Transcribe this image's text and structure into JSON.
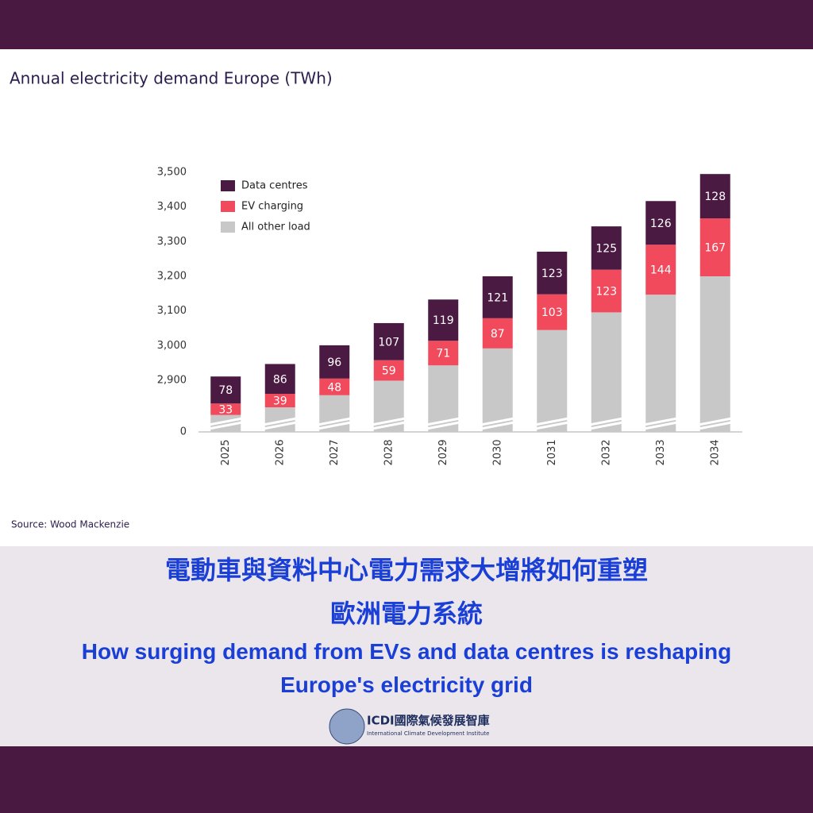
{
  "chart_data": {
    "type": "bar",
    "stacked": true,
    "title": "Annual electricity demand Europe (TWh)",
    "source": "Source: Wood Mackenzie",
    "categories": [
      "2025",
      "2026",
      "2027",
      "2028",
      "2029",
      "2030",
      "2031",
      "2032",
      "2033",
      "2034"
    ],
    "series": [
      {
        "name": "All other load",
        "color": "#c8c8c8",
        "values": [
          2800,
          2822,
          2857,
          2899,
          2943,
          2992,
          3045,
          3096,
          3147,
          3200
        ]
      },
      {
        "name": "EV charging",
        "color": "#f04a5c",
        "values": [
          33,
          39,
          48,
          59,
          71,
          87,
          103,
          123,
          144,
          167
        ]
      },
      {
        "name": "Data centres",
        "color": "#4b1a42",
        "values": [
          78,
          86,
          96,
          107,
          119,
          121,
          123,
          125,
          126,
          128
        ]
      }
    ],
    "ylim": [
      0,
      3500
    ],
    "y_axis_break": true,
    "yticks": [
      0,
      {
        "value": 2900,
        "label": "2,900"
      },
      {
        "value": 3000,
        "label": "3,000"
      },
      {
        "value": 3100,
        "label": "3,100"
      },
      {
        "value": 3200,
        "label": "3,200"
      },
      {
        "value": 3300,
        "label": "3,300"
      },
      {
        "value": 3400,
        "label": "3,400"
      },
      {
        "value": 3500,
        "label": "3,500"
      }
    ],
    "grid": false,
    "legend": "top-left"
  },
  "caption": {
    "title_zh": [
      "電動車與資料中心電力需求大增將如何重塑",
      "歐洲電力系統"
    ],
    "title_en": [
      "How surging demand from EVs and data centres is reshaping",
      "Europe's electricity grid"
    ]
  },
  "logo": {
    "name": "ICDI國際氣候發展智庫",
    "subtitle": "International Climate Development Institute"
  }
}
